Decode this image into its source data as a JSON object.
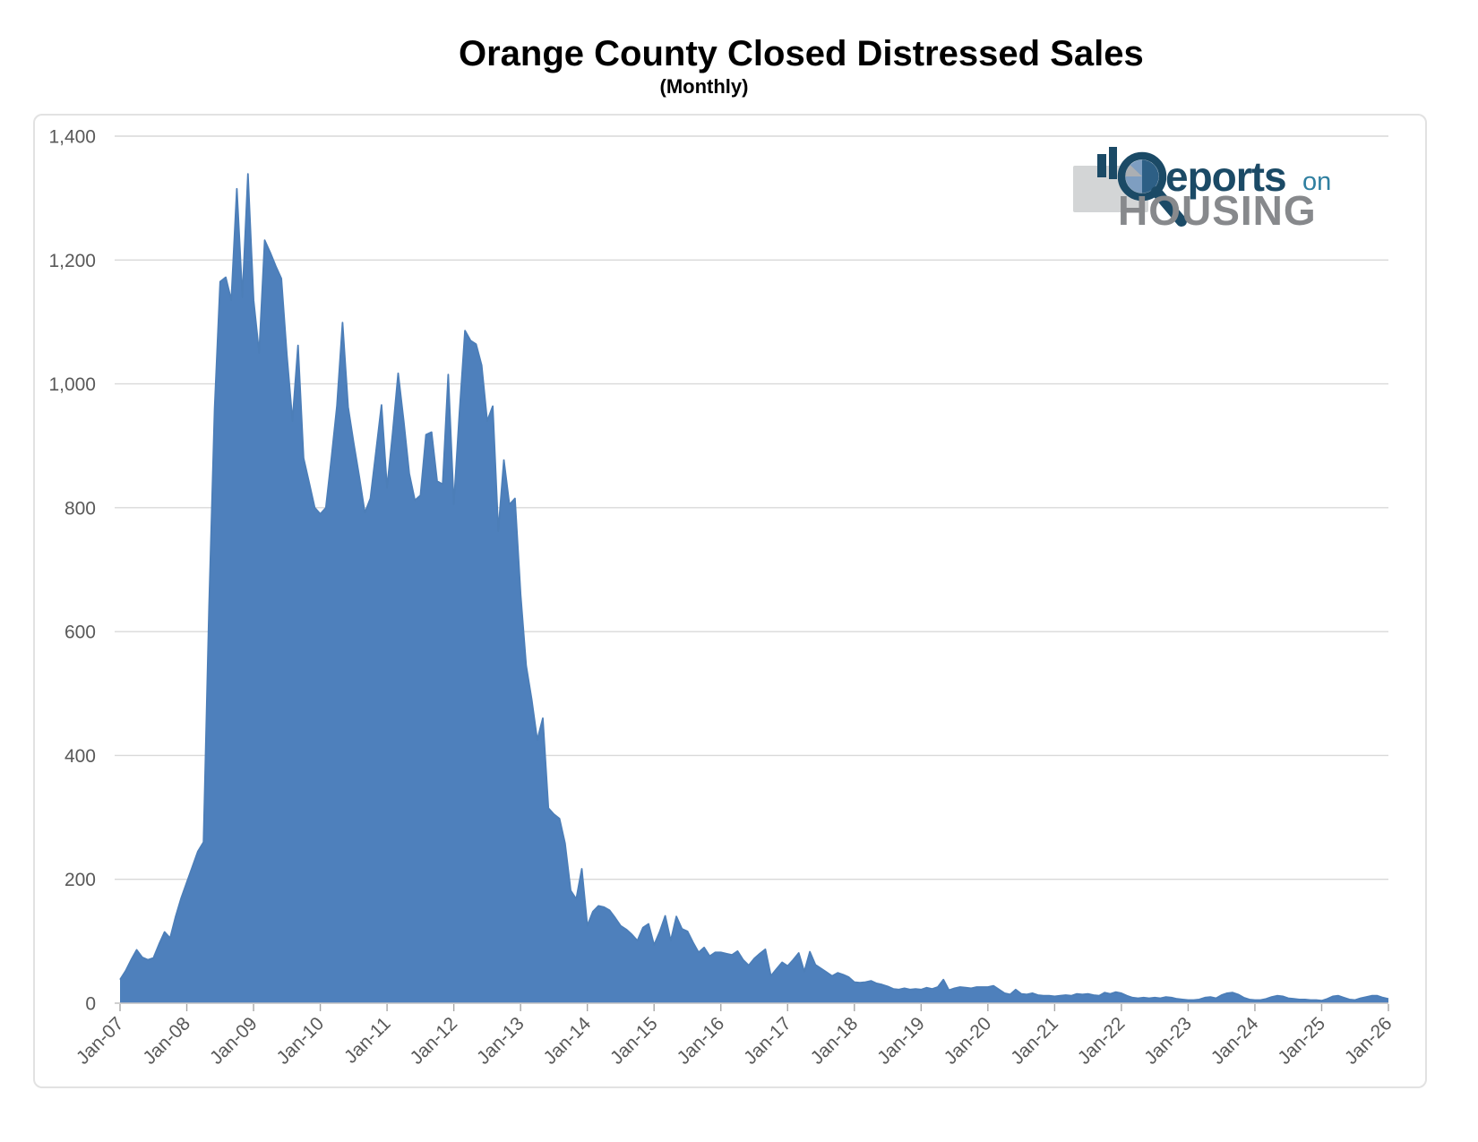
{
  "chart_data": {
    "type": "area",
    "title": "Orange County Closed Distressed Sales",
    "subtitle": "(Monthly)",
    "series_name": "Closed Distressed Sales",
    "frequency": "monthly",
    "x_start": "Jan-07",
    "x_end": "Jan-26",
    "x_tick_interval": 12,
    "x_tick_labels": [
      "Jan-07",
      "Jan-08",
      "Jan-09",
      "Jan-10",
      "Jan-11",
      "Jan-12",
      "Jan-13",
      "Jan-14",
      "Jan-15",
      "Jan-16",
      "Jan-17",
      "Jan-18",
      "Jan-19",
      "Jan-20",
      "Jan-21",
      "Jan-22",
      "Jan-23",
      "Jan-24",
      "Jan-25",
      "Jan-26"
    ],
    "y_tick_labels": [
      "0",
      "200",
      "400",
      "600",
      "800",
      "1,000",
      "1,200",
      "1,400"
    ],
    "ylim": [
      0,
      1400
    ],
    "grid": true,
    "legend": "none",
    "area_fill": "#4E80BC",
    "area_edge": "#4C7EB8",
    "grid_color": "#D9D9D9",
    "axis_line_color": "#C6C6C6",
    "tick_color": "#A6A6A6",
    "axis_label_color": "#595959",
    "values": [
      38,
      52,
      70,
      86,
      74,
      70,
      73,
      95,
      115,
      105,
      140,
      170,
      195,
      220,
      245,
      260,
      640,
      960,
      1165,
      1172,
      1135,
      1315,
      1140,
      1339,
      1135,
      1050,
      1232,
      1212,
      1190,
      1170,
      1046,
      940,
      1062,
      880,
      840,
      800,
      790,
      800,
      880,
      965,
      1099,
      963,
      905,
      850,
      792,
      815,
      890,
      966,
      832,
      920,
      1017,
      940,
      855,
      812,
      820,
      918,
      922,
      843,
      838,
      1015,
      805,
      950,
      1086,
      1070,
      1064,
      1030,
      940,
      964,
      762,
      877,
      805,
      815,
      660,
      545,
      490,
      425,
      460,
      315,
      305,
      298,
      258,
      182,
      168,
      217,
      125,
      148,
      157,
      155,
      150,
      138,
      125,
      119,
      111,
      101,
      122,
      128,
      94,
      115,
      141,
      101,
      140,
      120,
      116,
      98,
      82,
      90,
      76,
      82,
      82,
      80,
      78,
      84,
      70,
      61,
      72,
      80,
      87,
      44,
      55,
      66,
      60,
      70,
      81,
      51,
      83,
      62,
      56,
      50,
      44,
      49,
      46,
      42,
      34,
      33,
      34,
      36,
      32,
      30,
      27,
      23,
      22,
      24,
      22,
      23,
      22,
      25,
      23,
      26,
      38,
      21,
      24,
      26,
      25,
      24,
      26,
      26,
      26,
      28,
      22,
      16,
      14,
      22,
      15,
      14,
      16,
      13,
      12,
      12,
      11,
      12,
      13,
      12,
      15,
      14,
      15,
      13,
      12,
      17,
      15,
      18,
      16,
      12,
      9,
      8,
      9,
      8,
      9,
      8,
      10,
      9,
      7,
      6,
      5,
      5,
      6,
      9,
      10,
      8,
      13,
      16,
      17,
      14,
      9,
      6,
      5,
      5,
      7,
      10,
      12,
      11,
      8,
      7,
      6,
      6,
      5,
      5,
      4,
      7,
      11,
      12,
      9,
      6,
      5,
      8,
      10,
      12,
      12,
      9,
      7
    ]
  },
  "logo": {
    "reports_text": "eports",
    "on_text": "on",
    "housing_text": "HOUSING",
    "navy": "#1B4A66",
    "teal": "#2F7FA0",
    "gray": "#87898C"
  }
}
